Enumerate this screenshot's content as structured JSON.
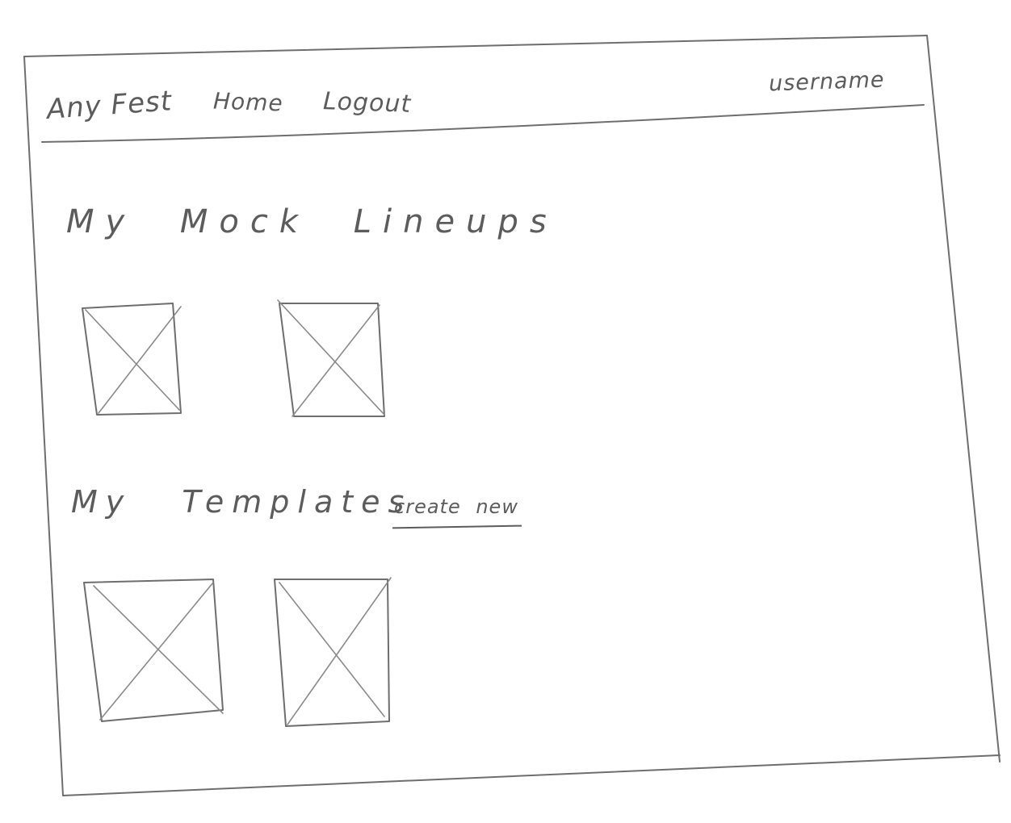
{
  "header": {
    "brand": "Any Fest",
    "nav": {
      "home": "Home",
      "logout": "Logout"
    },
    "username": "username"
  },
  "sections": {
    "lineups": {
      "title": "My Mock Lineups",
      "items": [
        "image-placeholder",
        "image-placeholder"
      ]
    },
    "templates": {
      "title": "My Templates",
      "create_link": "create new",
      "items": [
        "image-placeholder",
        "image-placeholder"
      ]
    }
  },
  "colors": {
    "pencil": "#6e6e6e",
    "paper": "#ffffff"
  }
}
